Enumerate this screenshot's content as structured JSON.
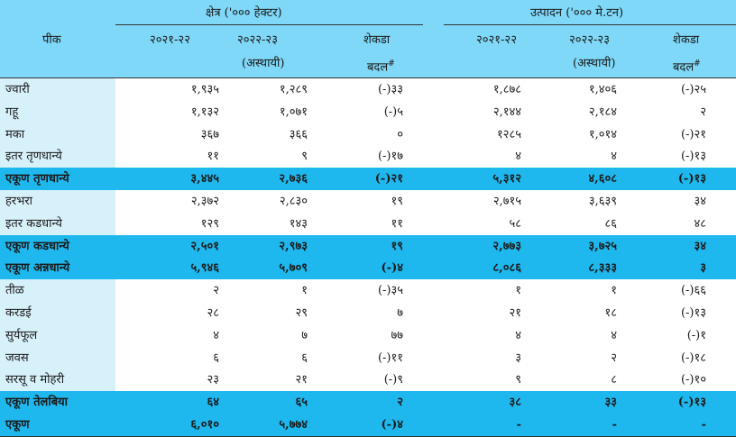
{
  "header": {
    "crop_label": "पीक",
    "area_group": "क्षेत्र ('००० हेक्टर)",
    "prod_group": "उत्पादन ('००० मे.टन)",
    "area_y1": "२०२१-२२",
    "area_y2": "२०२२-२३",
    "area_y2_note": "(अस्थायी)",
    "area_change_1": "शेकडा",
    "area_change_2": "बदल",
    "area_change_mark": "#",
    "prod_y1": "२०२१-२२",
    "prod_y2": "२०२२-२३",
    "prod_y2_note": "(अस्थायी)",
    "prod_change_1": "शेकडा",
    "prod_change_2": "बदल",
    "prod_change_mark": "#"
  },
  "rows": [
    {
      "name": "ज्वारी",
      "a1": "१,९३५",
      "a2": "१,२८९",
      "ac": "(-)३३",
      "p1": "१,८७८",
      "p2": "१,४०६",
      "pc": "(-)२५",
      "total": false
    },
    {
      "name": "गहू",
      "a1": "१,१३२",
      "a2": "१,०७१",
      "ac": "(-)५",
      "p1": "२,१४४",
      "p2": "२,१८४",
      "pc": "२",
      "total": false
    },
    {
      "name": "मका",
      "a1": "३६७",
      "a2": "३६६",
      "ac": "०",
      "p1": "१२८५",
      "p2": "१,०१४",
      "pc": "(-)२१",
      "total": false
    },
    {
      "name": "इतर तृणधान्ये",
      "a1": "११",
      "a2": "९",
      "ac": "(-)१७",
      "p1": "४",
      "p2": "४",
      "pc": "(-)१३",
      "total": false
    },
    {
      "name": "एकूण तृणधान्ये",
      "a1": "३,४४५",
      "a2": "२,७३६",
      "ac": "(-)२१",
      "p1": "५,३१२",
      "p2": "४,६०८",
      "pc": "(-)१३",
      "total": true
    },
    {
      "name": "हरभरा",
      "a1": "२,३७२",
      "a2": "२,८३०",
      "ac": "१९",
      "p1": "२,७१५",
      "p2": "३,६३९",
      "pc": "३४",
      "total": false
    },
    {
      "name": "इतर कडधान्ये",
      "a1": "१२९",
      "a2": "१४३",
      "ac": "११",
      "p1": "५८",
      "p2": "८६",
      "pc": "४८",
      "total": false
    },
    {
      "name": "एकूण कडधान्ये",
      "a1": "२,५०१",
      "a2": "२,९७३",
      "ac": "१९",
      "p1": "२,७७३",
      "p2": "३,७२५",
      "pc": "३४",
      "total": true
    },
    {
      "name": "एकूण अन्नधान्ये",
      "a1": "५,९४६",
      "a2": "५,७०९",
      "ac": "(-)४",
      "p1": "८,०८६",
      "p2": "८,३३३",
      "pc": "३",
      "total": true
    },
    {
      "name": "तीळ",
      "a1": "२",
      "a2": "१",
      "ac": "(-)३५",
      "p1": "१",
      "p2": "१",
      "pc": "(-)६६",
      "total": false
    },
    {
      "name": "करडई",
      "a1": "२८",
      "a2": "२९",
      "ac": "७",
      "p1": "२१",
      "p2": "१८",
      "pc": "(-)१३",
      "total": false
    },
    {
      "name": "सुर्यफूल",
      "a1": "४",
      "a2": "७",
      "ac": "७७",
      "p1": "४",
      "p2": "४",
      "pc": "(-)१",
      "total": false
    },
    {
      "name": "जवस",
      "a1": "६",
      "a2": "६",
      "ac": "(-)११",
      "p1": "३",
      "p2": "२",
      "pc": "(-)१८",
      "total": false
    },
    {
      "name": "सरसू व मोहरी",
      "a1": "२३",
      "a2": "२१",
      "ac": "(-)९",
      "p1": "९",
      "p2": "८",
      "pc": "(-)१०",
      "total": false
    },
    {
      "name": "एकूण तेलबिया",
      "a1": "६४",
      "a2": "६५",
      "ac": "२",
      "p1": "३८",
      "p2": "३३",
      "pc": "(-)१३",
      "total": true
    },
    {
      "name": "एकूण",
      "a1": "६,०१०",
      "a2": "५,७७४",
      "ac": "(-)४",
      "p1": "-",
      "p2": "-",
      "pc": "-",
      "total": true
    }
  ]
}
